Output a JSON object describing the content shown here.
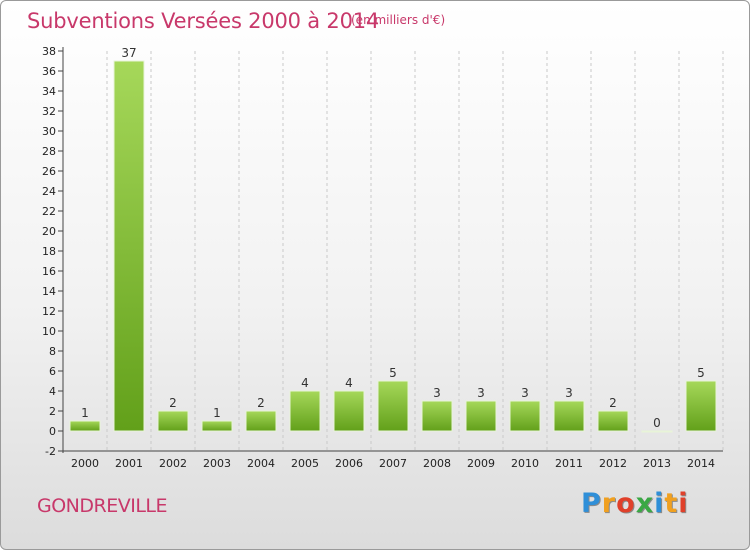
{
  "header": {
    "title": "Subventions Versées 2000 à 2014",
    "subtitle": "(en milliers d'€)"
  },
  "footer": {
    "commune": "GONDREVILLE",
    "logo_text": "Proxiti"
  },
  "colors": {
    "title": "#c8386a",
    "bar_light": "#a6d85a",
    "bar_dark": "#62a01a",
    "grid": "#c9c9c9",
    "axis": "#444444"
  },
  "chart_data": {
    "type": "bar",
    "categories": [
      "2000",
      "2001",
      "2002",
      "2003",
      "2004",
      "2005",
      "2006",
      "2007",
      "2008",
      "2009",
      "2010",
      "2011",
      "2012",
      "2013",
      "2014"
    ],
    "values": [
      1,
      37,
      2,
      1,
      2,
      4,
      4,
      5,
      3,
      3,
      3,
      3,
      2,
      0,
      5
    ],
    "data_labels": [
      "1",
      "37",
      "2",
      "1",
      "2",
      "4",
      "4",
      "5",
      "3",
      "3",
      "3",
      "3",
      "2",
      "0",
      "5"
    ],
    "y_ticks": [
      "-2",
      "0",
      "2",
      "4",
      "6",
      "8",
      "10",
      "12",
      "14",
      "16",
      "18",
      "20",
      "22",
      "24",
      "26",
      "28",
      "30",
      "32",
      "34",
      "36",
      "38"
    ],
    "ylim": [
      -2,
      38
    ],
    "grid": "vertical dashed",
    "legend": "none"
  }
}
